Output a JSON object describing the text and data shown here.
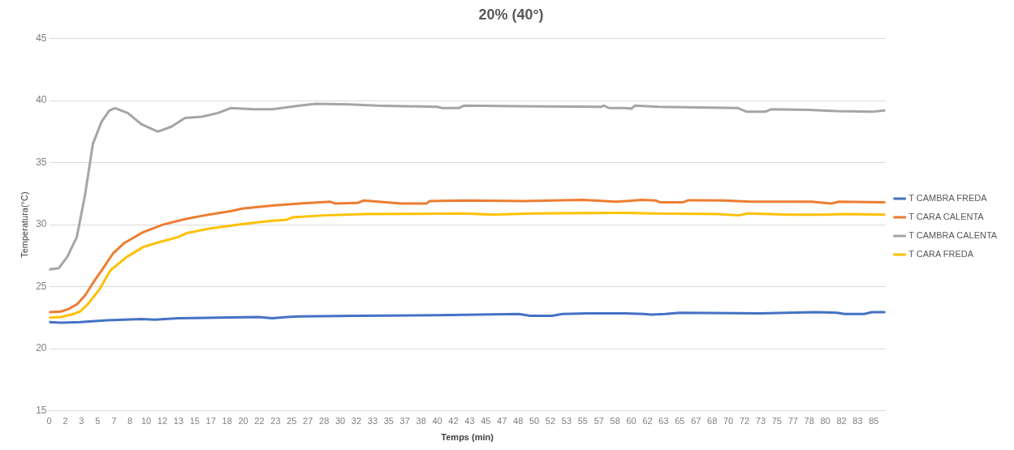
{
  "chart_data": {
    "type": "line",
    "title": "20% (40°)",
    "xlabel": "Temps (min)",
    "ylabel": "Temperatura(°C)",
    "xlim": [
      0,
      86.2
    ],
    "ylim": [
      15,
      45
    ],
    "yticks": [
      15,
      20,
      25,
      30,
      35,
      40,
      45
    ],
    "xticks": [
      0,
      {
        "value": 1.667,
        "label": "2"
      },
      {
        "value": 3.333,
        "label": "3"
      },
      5,
      {
        "value": 6.667,
        "label": "7"
      },
      {
        "value": 8.333,
        "label": "8"
      },
      10,
      {
        "value": 11.667,
        "label": "12"
      },
      {
        "value": 13.333,
        "label": "13"
      },
      15,
      {
        "value": 16.667,
        "label": "17"
      },
      {
        "value": 18.333,
        "label": "18"
      },
      20,
      {
        "value": 21.667,
        "label": "22"
      },
      {
        "value": 23.333,
        "label": "23"
      },
      25,
      {
        "value": 26.667,
        "label": "27"
      },
      {
        "value": 28.333,
        "label": "28"
      },
      30,
      {
        "value": 31.667,
        "label": "32"
      },
      {
        "value": 33.333,
        "label": "33"
      },
      35,
      {
        "value": 36.667,
        "label": "37"
      },
      {
        "value": 38.333,
        "label": "38"
      },
      40,
      {
        "value": 41.667,
        "label": "42"
      },
      {
        "value": 43.333,
        "label": "43"
      },
      45,
      {
        "value": 46.667,
        "label": "47"
      },
      {
        "value": 48.333,
        "label": "48"
      },
      50,
      {
        "value": 51.667,
        "label": "52"
      },
      {
        "value": 53.333,
        "label": "53"
      },
      55,
      {
        "value": 56.667,
        "label": "57"
      },
      {
        "value": 58.333,
        "label": "58"
      },
      60,
      {
        "value": 61.667,
        "label": "62"
      },
      {
        "value": 63.333,
        "label": "63"
      },
      65,
      {
        "value": 66.667,
        "label": "67"
      },
      {
        "value": 68.333,
        "label": "68"
      },
      70,
      {
        "value": 71.667,
        "label": "72"
      },
      {
        "value": 73.333,
        "label": "73"
      },
      75,
      {
        "value": 76.667,
        "label": "77"
      },
      {
        "value": 78.333,
        "label": "78"
      },
      80,
      {
        "value": 81.667,
        "label": "82"
      },
      {
        "value": 83.333,
        "label": "83"
      },
      85
    ],
    "grid": "y",
    "legend": "right",
    "series": [
      {
        "name": "T CAMBRA FREDA",
        "color": "#4472c4",
        "x": [
          0,
          1.2,
          3.2,
          6,
          9.5,
          10.9,
          13.3,
          17.4,
          21.6,
          23,
          24.5,
          25.8,
          31.5,
          40,
          48.4,
          49.6,
          51.8,
          52.9,
          55.5,
          59.4,
          61.3,
          62.1,
          63.5,
          65,
          73.3,
          78.9,
          81.2,
          82,
          84,
          84.8,
          86.1
        ],
        "values": [
          22.15,
          22.1,
          22.15,
          22.3,
          22.4,
          22.35,
          22.45,
          22.5,
          22.55,
          22.45,
          22.55,
          22.6,
          22.65,
          22.7,
          22.8,
          22.65,
          22.65,
          22.8,
          22.85,
          22.85,
          22.8,
          22.75,
          22.8,
          22.9,
          22.85,
          22.95,
          22.9,
          22.8,
          22.8,
          22.95,
          22.95
        ]
      },
      {
        "name": "T CARA CALENTA",
        "color": "#ed7d31",
        "x": [
          0,
          1.2,
          2,
          2.9,
          3.7,
          4.6,
          5.4,
          6.6,
          7.7,
          9.7,
          11.7,
          14,
          16,
          18.8,
          19.9,
          23,
          25.8,
          29,
          29.5,
          31.8,
          32.4,
          36.3,
          38.9,
          39.2,
          42.8,
          49,
          55,
          58.4,
          59.5,
          61.1,
          62.5,
          63,
          65.3,
          65.9,
          69.5,
          72.3,
          78.6,
          80.6,
          81.4,
          86.1
        ],
        "values": [
          22.95,
          23,
          23.2,
          23.6,
          24.3,
          25.4,
          26.3,
          27.7,
          28.5,
          29.4,
          30,
          30.45,
          30.75,
          31.1,
          31.3,
          31.55,
          31.7,
          31.85,
          31.7,
          31.75,
          31.95,
          31.7,
          31.7,
          31.9,
          31.95,
          31.9,
          32,
          31.85,
          31.9,
          32,
          31.95,
          31.8,
          31.8,
          31.97,
          31.95,
          31.85,
          31.85,
          31.7,
          31.85,
          31.8
        ]
      },
      {
        "name": "T CAMBRA CALENTA",
        "color": "#a5a5a5",
        "x": [
          0,
          1,
          1.86,
          2.85,
          3.7,
          4.5,
          5.4,
          6.2,
          6.8,
          8.1,
          9.5,
          11.2,
          12.6,
          14,
          15.7,
          17.4,
          18.7,
          21.1,
          23,
          25.8,
          27.5,
          30.9,
          33.8,
          40,
          40.5,
          42.2,
          42.8,
          48.4,
          56.9,
          57.2,
          57.7,
          59.4,
          60,
          60.4,
          62.8,
          71,
          71.9,
          73.8,
          74.4,
          78.3,
          81.2,
          84.8,
          86.1
        ],
        "values": [
          26.4,
          26.5,
          27.4,
          29,
          32.4,
          36.5,
          38.3,
          39.2,
          39.4,
          39,
          38.1,
          37.5,
          37.9,
          38.6,
          38.7,
          39,
          39.4,
          39.3,
          39.3,
          39.6,
          39.75,
          39.7,
          39.6,
          39.5,
          39.4,
          39.4,
          39.6,
          39.55,
          39.5,
          39.6,
          39.4,
          39.4,
          39.35,
          39.6,
          39.5,
          39.4,
          39.1,
          39.1,
          39.3,
          39.25,
          39.15,
          39.1,
          39.2
        ]
      },
      {
        "name": "T CARA FREDA",
        "color": "#ffc000",
        "x": [
          0,
          1.2,
          2.3,
          3.2,
          4,
          5.2,
          6.3,
          8,
          9.7,
          11.4,
          13.3,
          14.1,
          16.6,
          20,
          22.8,
          24.5,
          25.1,
          28.4,
          32.7,
          42.8,
          45.7,
          49.9,
          59.4,
          62.1,
          68.9,
          71.1,
          72,
          76.3,
          79.6,
          81.9,
          86.1
        ],
        "values": [
          22.5,
          22.55,
          22.75,
          23,
          23.6,
          24.8,
          26.3,
          27.4,
          28.2,
          28.6,
          29,
          29.3,
          29.7,
          30.05,
          30.3,
          30.4,
          30.6,
          30.75,
          30.85,
          30.9,
          30.8,
          30.9,
          30.95,
          30.9,
          30.85,
          30.75,
          30.9,
          30.8,
          30.8,
          30.85,
          30.8
        ]
      }
    ]
  }
}
